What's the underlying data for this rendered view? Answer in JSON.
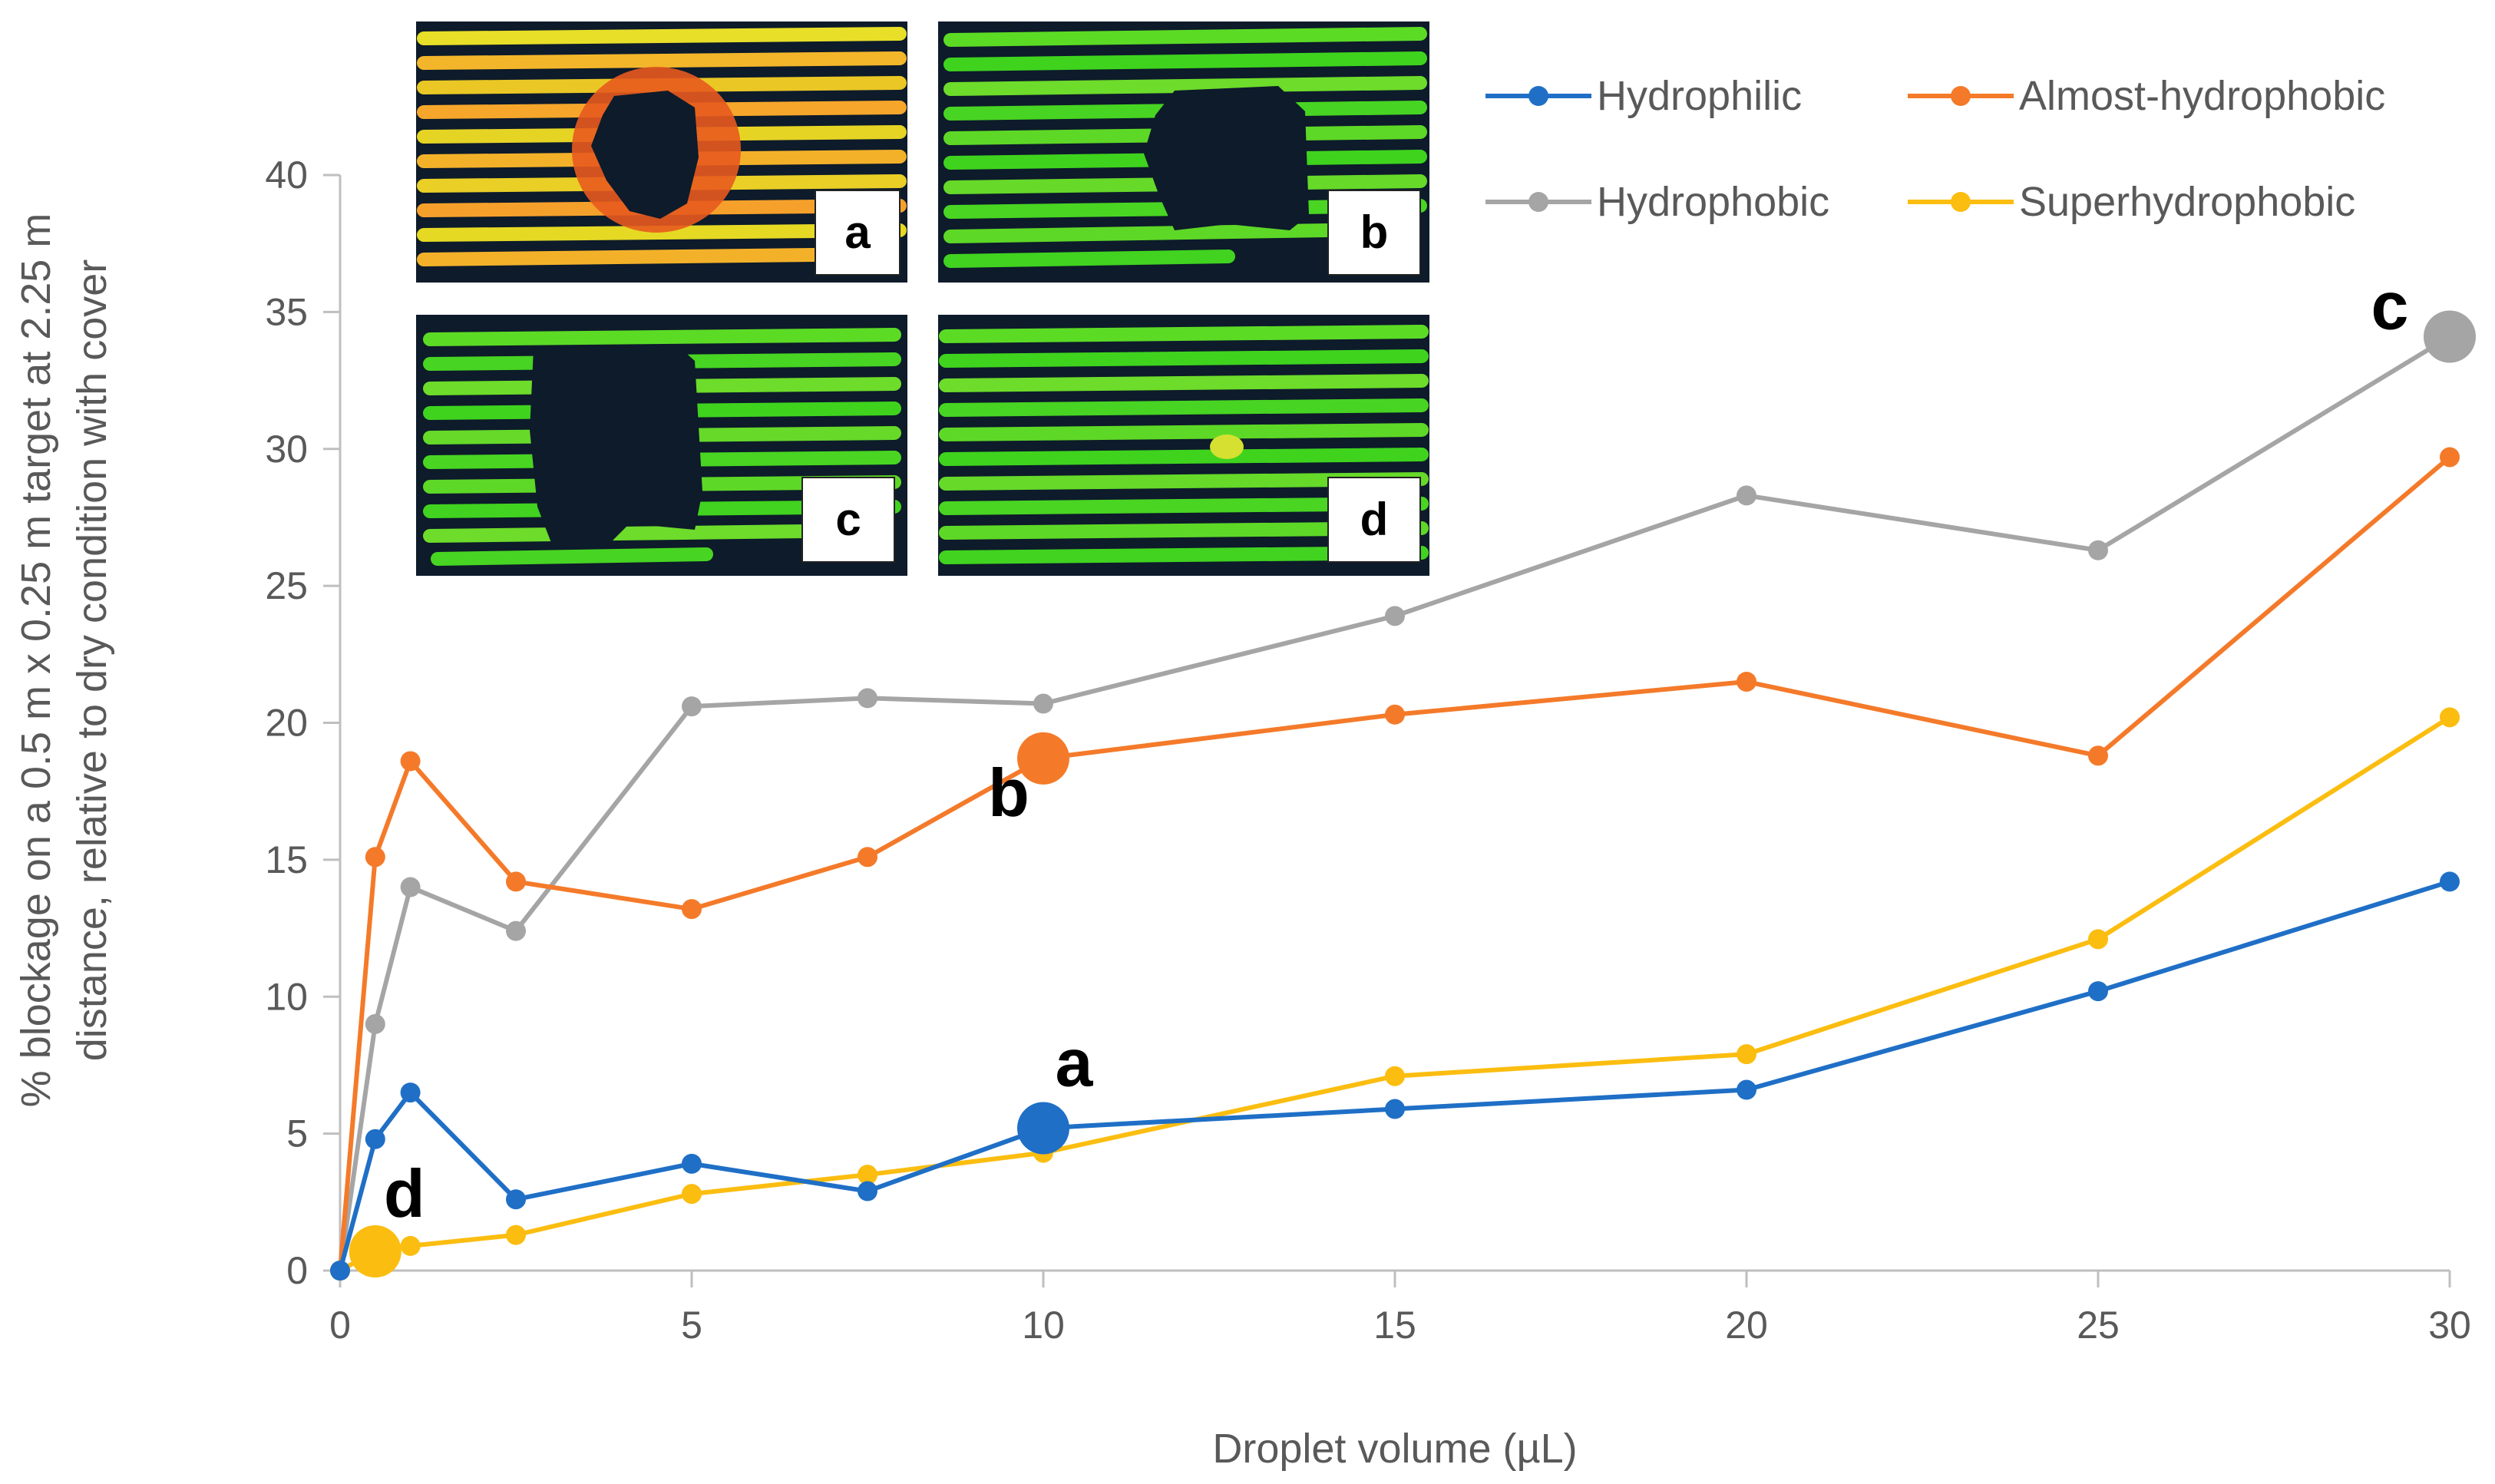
{
  "chart_data": {
    "type": "line",
    "title": "",
    "xlabel": "Droplet volume (µL)",
    "ylabel_lines": [
      "% blockage on a 0.5 m x 0.25 m target at 2.25 m",
      "distance, relative to dry condition with cover"
    ],
    "xlim": [
      0,
      30
    ],
    "ylim": [
      0,
      40
    ],
    "xticks": [
      0,
      5,
      10,
      15,
      20,
      25,
      30
    ],
    "yticks": [
      0,
      5,
      10,
      15,
      20,
      25,
      30,
      35,
      40
    ],
    "grid": false,
    "legend_position": "top-right",
    "x": [
      0,
      0.5,
      1,
      2.5,
      5,
      7.5,
      10,
      15,
      20,
      25,
      30
    ],
    "series": [
      {
        "name": "Hydrophilic",
        "color": "#1f6fc6",
        "values": [
          0,
          4.8,
          6.5,
          2.6,
          3.9,
          2.9,
          5.2,
          5.9,
          6.6,
          10.2,
          14.2
        ]
      },
      {
        "name": "Almost-hydrophobic",
        "color": "#f47a2a",
        "values": [
          0,
          15.1,
          18.6,
          14.2,
          13.2,
          15.1,
          18.7,
          20.3,
          21.5,
          18.8,
          29.7
        ]
      },
      {
        "name": "Hydrophobic",
        "color": "#a5a5a5",
        "values": [
          0,
          9.0,
          14.0,
          12.4,
          20.6,
          20.9,
          20.7,
          23.9,
          28.3,
          26.3,
          34.1
        ]
      },
      {
        "name": "Superhydrophobic",
        "color": "#fbbd10",
        "values": [
          0,
          0.7,
          0.9,
          1.3,
          2.8,
          3.5,
          4.3,
          7.1,
          7.9,
          12.1,
          20.2
        ]
      }
    ],
    "callouts": [
      {
        "label": "a",
        "series": 0,
        "x": 10,
        "y": 5.2
      },
      {
        "label": "b",
        "series": 1,
        "x": 10,
        "y": 18.7
      },
      {
        "label": "c",
        "series": 2,
        "x": 30,
        "y": 34.1
      },
      {
        "label": "d",
        "series": 3,
        "x": 0.5,
        "y": 0.7
      }
    ],
    "insets": [
      {
        "label": "a",
        "theme": "orange-yellow point cloud with dark blockage hole"
      },
      {
        "label": "b",
        "theme": "green point cloud with dark blockage hole"
      },
      {
        "label": "c",
        "theme": "green point cloud with large dark blockage hole"
      },
      {
        "label": "d",
        "theme": "green point cloud with no blockage"
      }
    ]
  }
}
